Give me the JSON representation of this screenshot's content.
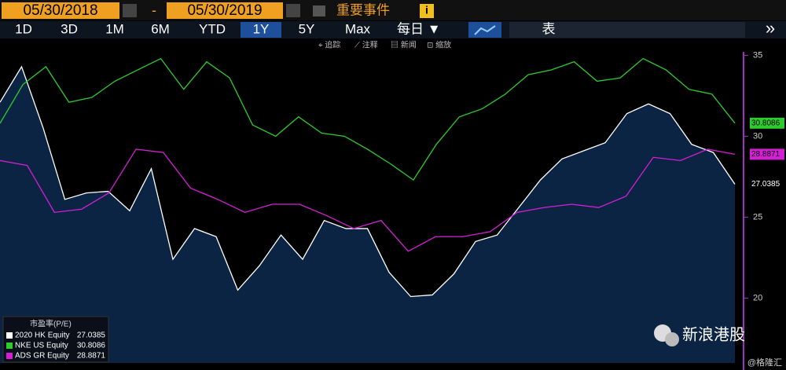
{
  "ui": {
    "start_date": "05/30/2018",
    "separator": "-",
    "end_date": "05/30/2019",
    "events": "重要事件",
    "info": "i",
    "ranges": [
      "1D",
      "3D",
      "1M",
      "6M",
      "YTD",
      "1Y",
      "5Y",
      "Max"
    ],
    "active_range": "1Y",
    "frequency": "每日 ▼",
    "table": "表",
    "more": "»",
    "tools": [
      "⌖ 追踪",
      "⟋ 注释",
      "▤ 新闻",
      "⊡ 缩放"
    ],
    "watermark": "新浪港股",
    "credit": "@格隆汇"
  },
  "chart_data": {
    "type": "line",
    "legend_title": "市盈率(P/E)",
    "ylim": [
      16,
      35.7
    ],
    "yticks": [
      20,
      25,
      30,
      35
    ],
    "series": [
      {
        "name": "2020 HK Equity",
        "color": "#ffffff",
        "values": [
          32.1,
          34.3,
          30.5,
          26.1,
          26.5,
          26.6,
          25.4,
          28.0,
          22.4,
          24.3,
          23.8,
          20.5,
          22.0,
          23.9,
          22.4,
          24.8,
          24.3,
          24.3,
          21.6,
          20.1,
          20.2,
          21.5,
          23.5,
          23.9,
          25.6,
          27.3,
          28.6,
          29.1,
          29.6,
          31.4,
          32.0,
          31.4,
          29.5,
          29.0,
          27.0385
        ]
      },
      {
        "name": "NKE US Equity",
        "color": "#2ecc2e",
        "values": [
          30.8,
          33.2,
          34.3,
          32.1,
          32.4,
          33.4,
          34.1,
          34.8,
          32.9,
          34.6,
          33.6,
          30.7,
          30.0,
          31.2,
          30.2,
          30.0,
          29.2,
          28.3,
          27.3,
          29.5,
          31.2,
          31.7,
          32.6,
          33.8,
          34.1,
          34.6,
          33.4,
          33.6,
          34.8,
          34.1,
          32.9,
          32.6,
          30.8086
        ]
      },
      {
        "name": "ADS GR Equity",
        "color": "#d41fd4",
        "values": [
          28.5,
          28.2,
          25.3,
          25.5,
          26.5,
          29.2,
          29.0,
          26.8,
          26.1,
          25.3,
          25.8,
          25.8,
          25.1,
          24.3,
          24.8,
          22.9,
          23.8,
          23.8,
          24.1,
          25.3,
          25.6,
          25.8,
          25.6,
          26.3,
          28.7,
          28.5,
          29.2,
          28.8871
        ]
      }
    ]
  }
}
